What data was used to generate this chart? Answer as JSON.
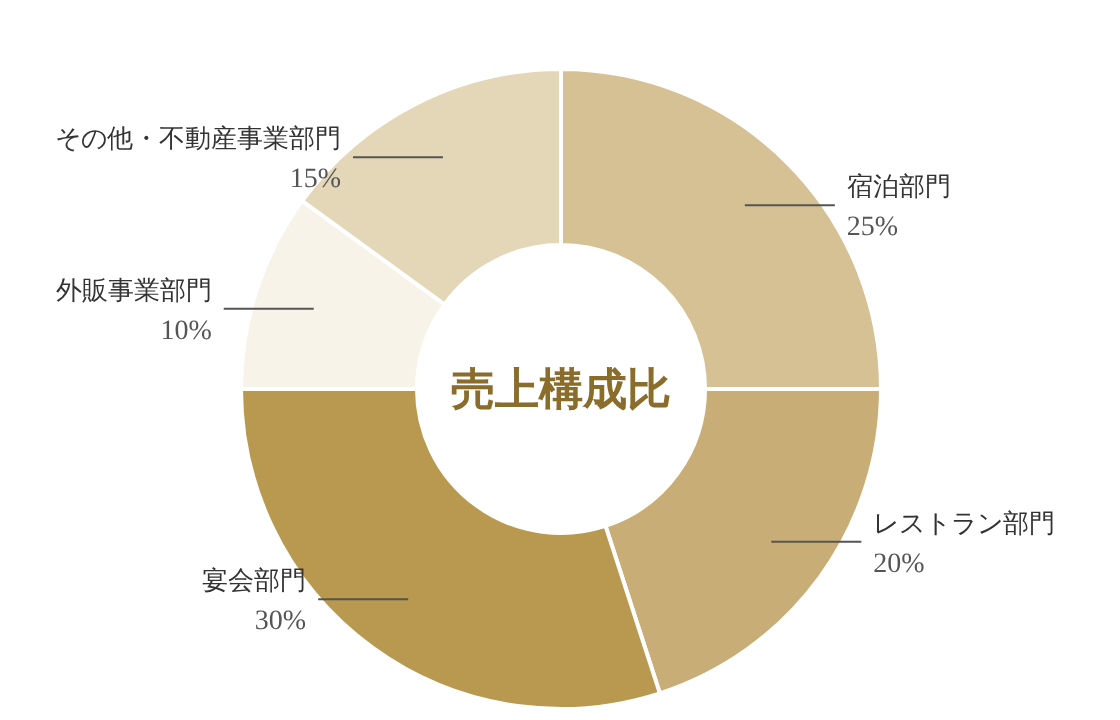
{
  "chart_data": {
    "type": "donut",
    "title": "売上構成比",
    "categories": [
      "宿泊部門",
      "レストラン部門",
      "宴会部門",
      "外販事業部門",
      "その他・不動産事業部門"
    ],
    "values": [
      25,
      20,
      30,
      10,
      15
    ],
    "colors": [
      "#d6c195",
      "#c9ad76",
      "#b8994f",
      "#f7f3e8",
      "#e3d7b8"
    ],
    "value_labels": [
      "25%",
      "20%",
      "30%",
      "10%",
      "15%"
    ]
  }
}
